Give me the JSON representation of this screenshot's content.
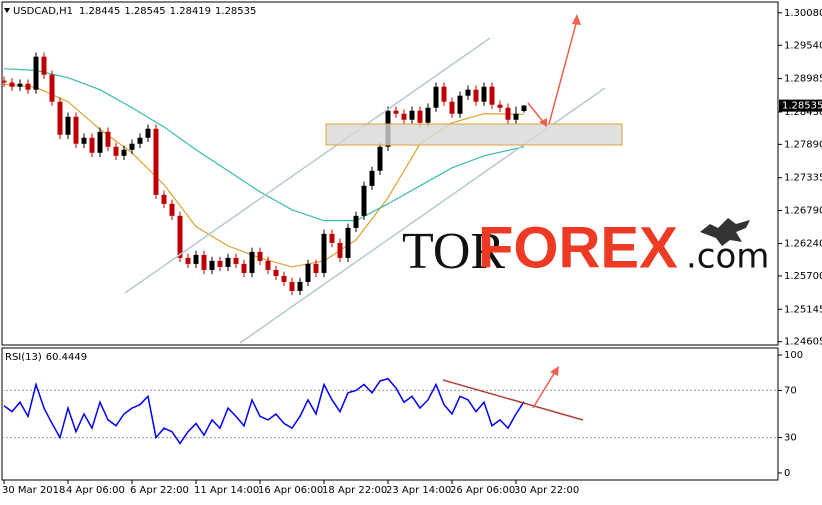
{
  "chart_data": [
    {
      "type": "candlestick",
      "title": "USDCAD,H1",
      "categories": [
        "30 Mar 2018",
        null,
        null,
        null,
        null,
        null,
        null,
        null,
        "4 Apr 06:00",
        null,
        null,
        null,
        null,
        null,
        null,
        null,
        "6 Apr 22:00",
        null,
        null,
        null,
        null,
        null,
        null,
        null,
        "11 Apr 14:00",
        null,
        null,
        null,
        null,
        null,
        null,
        null,
        "16 Apr 06:00",
        null,
        null,
        null,
        null,
        null,
        null,
        null,
        "18 Apr 22:00",
        null,
        null,
        null,
        null,
        null,
        null,
        null,
        "23 Apr 14:00",
        null,
        null,
        null,
        null,
        null,
        null,
        null,
        "26 Apr 06:00",
        null,
        null,
        null,
        null,
        null,
        null,
        null,
        "30 Apr 22:00",
        null
      ],
      "open": [
        1.2895,
        1.2892,
        1.2885,
        1.289,
        1.288,
        1.2935,
        1.2905,
        1.286,
        1.2805,
        1.2835,
        1.279,
        1.28,
        1.2775,
        1.281,
        1.2785,
        1.277,
        1.278,
        1.279,
        1.28,
        1.2815,
        1.2705,
        1.269,
        1.267,
        1.26,
        1.259,
        1.2605,
        1.258,
        1.2595,
        1.2585,
        1.26,
        1.259,
        1.2575,
        1.261,
        1.2595,
        1.258,
        1.257,
        1.256,
        1.2545,
        1.256,
        1.259,
        1.2575,
        1.264,
        1.2625,
        1.26,
        1.265,
        1.267,
        1.272,
        1.2745,
        1.2785,
        1.2845,
        1.284,
        1.283,
        1.2845,
        1.2825,
        1.285,
        1.2885,
        1.286,
        1.284,
        1.287,
        1.288,
        1.286,
        1.2885,
        1.2855,
        1.285,
        1.283,
        1.28445
      ],
      "high": [
        1.2902,
        1.2899,
        1.2897,
        1.2897,
        1.2942,
        1.2942,
        1.2912,
        1.2867,
        1.2842,
        1.2842,
        1.2807,
        1.2807,
        1.2817,
        1.2817,
        1.2792,
        1.2787,
        1.2797,
        1.2807,
        1.2822,
        1.2822,
        1.2712,
        1.2697,
        1.2677,
        1.2607,
        1.2612,
        1.2612,
        1.2602,
        1.2602,
        1.2607,
        1.2607,
        1.2597,
        1.2617,
        1.2617,
        1.2602,
        1.2587,
        1.2577,
        1.2567,
        1.2567,
        1.2597,
        1.2597,
        1.2647,
        1.2647,
        1.2632,
        1.2657,
        1.2677,
        1.2727,
        1.2752,
        1.2792,
        1.2852,
        1.2852,
        1.2847,
        1.2852,
        1.2852,
        1.2857,
        1.2892,
        1.2892,
        1.2867,
        1.2877,
        1.2887,
        1.2887,
        1.2892,
        1.2892,
        1.2862,
        1.2857,
        1.2852,
        1.28545
      ],
      "low": [
        1.2885,
        1.2878,
        1.2878,
        1.2873,
        1.2873,
        1.2898,
        1.2853,
        1.2798,
        1.2798,
        1.2783,
        1.2783,
        1.2768,
        1.2768,
        1.2778,
        1.2763,
        1.2763,
        1.2773,
        1.2783,
        1.2793,
        1.2698,
        1.2683,
        1.2663,
        1.2593,
        1.2583,
        1.2583,
        1.2573,
        1.2573,
        1.2578,
        1.2578,
        1.2583,
        1.2568,
        1.2568,
        1.2588,
        1.2573,
        1.2563,
        1.2553,
        1.2538,
        1.2538,
        1.2553,
        1.2568,
        1.2568,
        1.2618,
        1.2593,
        1.2593,
        1.2643,
        1.2663,
        1.2713,
        1.2738,
        1.2778,
        1.2833,
        1.2823,
        1.2823,
        1.2818,
        1.2818,
        1.2843,
        1.2853,
        1.2833,
        1.2833,
        1.2863,
        1.2853,
        1.2853,
        1.2848,
        1.2843,
        1.2823,
        1.2823,
        1.28419
      ],
      "close": [
        1.2892,
        1.2885,
        1.289,
        1.288,
        1.2935,
        1.2905,
        1.286,
        1.2805,
        1.2835,
        1.279,
        1.28,
        1.2775,
        1.281,
        1.2785,
        1.277,
        1.278,
        1.279,
        1.28,
        1.2815,
        1.2705,
        1.269,
        1.267,
        1.26,
        1.259,
        1.2605,
        1.258,
        1.2595,
        1.2585,
        1.26,
        1.259,
        1.2575,
        1.261,
        1.2595,
        1.258,
        1.257,
        1.256,
        1.2545,
        1.256,
        1.259,
        1.2575,
        1.264,
        1.2625,
        1.26,
        1.265,
        1.267,
        1.272,
        1.2745,
        1.2785,
        1.2845,
        1.284,
        1.283,
        1.2845,
        1.2825,
        1.285,
        1.2885,
        1.286,
        1.284,
        1.287,
        1.288,
        1.286,
        1.2885,
        1.2855,
        1.285,
        1.283,
        1.284,
        1.28535
      ],
      "up_color": "#000000",
      "down_color": "#c00000",
      "overlays": [
        {
          "color": "#e0a030",
          "x": [
            0,
            4,
            8,
            12,
            16,
            20,
            24,
            28,
            32,
            36,
            40,
            44,
            48,
            52,
            56,
            60,
            65
          ],
          "values": [
            1.2889,
            1.2884,
            1.286,
            1.2814,
            1.2775,
            1.2722,
            1.2652,
            1.262,
            1.26,
            1.2585,
            1.2595,
            1.263,
            1.27,
            1.279,
            1.2825,
            1.284,
            1.2839
          ]
        },
        {
          "color": "#3cb8b0",
          "x": [
            0,
            4,
            8,
            12,
            16,
            20,
            24,
            28,
            32,
            36,
            40,
            44,
            48,
            52,
            56,
            60,
            65
          ],
          "values": [
            1.2915,
            1.2912,
            1.29,
            1.288,
            1.285,
            1.2818,
            1.278,
            1.2745,
            1.271,
            1.268,
            1.2662,
            1.2662,
            1.269,
            1.272,
            1.275,
            1.277,
            1.2785
          ]
        }
      ],
      "ylim": [
        1.2455,
        1.3026
      ],
      "yticks": [
        {
          "value": 1.3008,
          "label": "1.30080"
        },
        {
          "value": 1.2954,
          "label": "1.29540"
        },
        1.28985,
        {
          "value": 1.2843,
          "label": "1.28430"
        },
        {
          "value": 1.2789,
          "label": "1.27890"
        },
        1.27335,
        {
          "value": 1.2679,
          "label": "1.26790"
        },
        {
          "value": 1.2624,
          "label": "1.26240"
        },
        {
          "value": 1.257,
          "label": "1.25700"
        },
        1.25145,
        1.24605
      ]
    },
    {
      "type": "line",
      "title": "RSI(13)",
      "color": "#0000ff",
      "values": [
        57,
        52,
        60,
        48,
        75,
        55,
        42,
        30,
        55,
        35,
        50,
        38,
        60,
        45,
        40,
        50,
        55,
        58,
        65,
        30,
        38,
        35,
        25,
        35,
        42,
        32,
        45,
        38,
        55,
        48,
        40,
        62,
        48,
        45,
        50,
        42,
        38,
        48,
        62,
        50,
        75,
        62,
        52,
        68,
        70,
        75,
        68,
        78,
        80,
        72,
        60,
        65,
        55,
        62,
        75,
        58,
        50,
        65,
        62,
        52,
        60,
        40,
        45,
        38,
        50,
        60.4449
      ],
      "ylim": [
        -6,
        106
      ],
      "yticks": [
        100,
        70,
        30,
        0
      ],
      "levels": [
        70,
        30
      ]
    }
  ],
  "watermark": {
    "part1": "TOR",
    "part2": "FOREX",
    "part3": ".com"
  }
}
